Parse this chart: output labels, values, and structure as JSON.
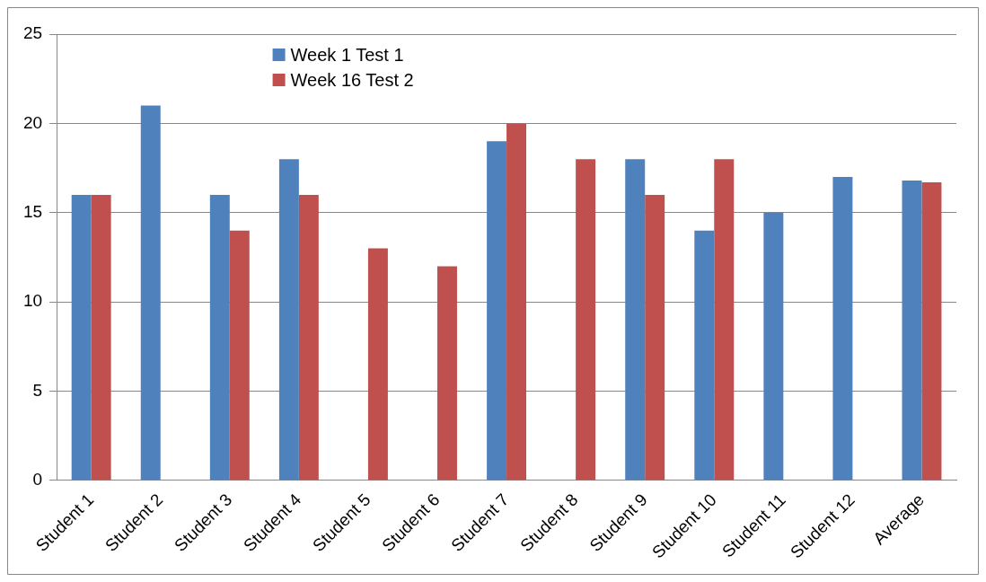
{
  "chart_data": {
    "type": "bar",
    "categories": [
      "Student 1",
      "Student 2",
      "Student 3",
      "Student 4",
      "Student 5",
      "Student 6",
      "Student 7",
      "Student 8",
      "Student 9",
      "Student 10",
      "Student 11",
      "Student 12",
      "Average"
    ],
    "series": [
      {
        "name": "Week 1 Test 1",
        "color": "#4f81bd",
        "values": [
          16,
          21,
          16,
          18,
          null,
          null,
          19,
          null,
          18,
          14,
          15,
          17,
          16.8
        ]
      },
      {
        "name": "Week 16 Test 2",
        "color": "#c0504d",
        "values": [
          16,
          null,
          14,
          16,
          13,
          12,
          20,
          18,
          16,
          18,
          null,
          null,
          16.7
        ]
      }
    ],
    "ylim": [
      0,
      25
    ],
    "yticks": [
      0,
      5,
      10,
      15,
      20,
      25
    ],
    "grid": "y",
    "legend": "top left"
  }
}
